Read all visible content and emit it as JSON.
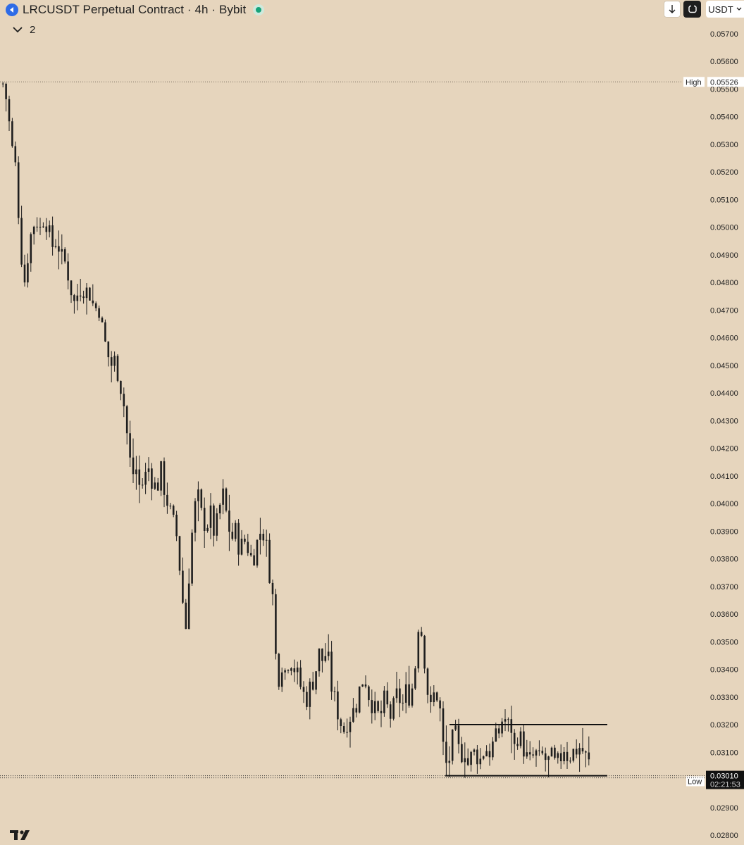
{
  "header": {
    "title": "LRCUSDT Perpetual Contract · 4h · Bybit",
    "indicator_count": "2",
    "currency": "USDT"
  },
  "icons": {
    "symbol": "lrc-logo-icon",
    "status": "market-open-dot",
    "download": "arrow-down-icon",
    "reset": "reset-icon",
    "currency_caret": "chevron-down-icon",
    "indicator_caret": "chevron-down-icon",
    "brand": "tradingview-logo-icon"
  },
  "colors": {
    "background": "#e6d5bd",
    "candles": "#1e1e1e",
    "current_price_bg": "#111111",
    "status_green": "#16a37a"
  },
  "chart_data": {
    "type": "candlestick",
    "symbol": "LRCUSDT",
    "interval": "4h",
    "exchange": "Bybit",
    "y_axis": {
      "ticks": [
        "0.05700",
        "0.05600",
        "0.05500",
        "0.05400",
        "0.05300",
        "0.05200",
        "0.05100",
        "0.05000",
        "0.04900",
        "0.04800",
        "0.04700",
        "0.04600",
        "0.04500",
        "0.04400",
        "0.04300",
        "0.04200",
        "0.04100",
        "0.04000",
        "0.03900",
        "0.03800",
        "0.03700",
        "0.03600",
        "0.03500",
        "0.03400",
        "0.03300",
        "0.03200",
        "0.03100",
        "0.02900",
        "0.02800"
      ],
      "range": [
        0.0278,
        0.0573
      ]
    },
    "high": {
      "label": "High",
      "value": "0.05526"
    },
    "low": {
      "label": "Low",
      "value": "0.02995"
    },
    "current": {
      "price": "0.03010",
      "countdown": "02:21:53"
    },
    "range_box": {
      "top": 0.032,
      "bottom": 0.0301
    },
    "close_path": [
      0.0552,
      0.0545,
      0.053,
      0.0522,
      0.05,
      0.0478,
      0.049,
      0.05,
      0.0503,
      0.0499,
      0.0505,
      0.0498,
      0.0493,
      0.0496,
      0.0489,
      0.0487,
      0.0481,
      0.0472,
      0.0476,
      0.0479,
      0.0477,
      0.0476,
      0.047,
      0.0472,
      0.0462,
      0.0455,
      0.045,
      0.0452,
      0.0445,
      0.0437,
      0.0423,
      0.041,
      0.0413,
      0.0405,
      0.0409,
      0.0413,
      0.0408,
      0.0405,
      0.0412,
      0.0404,
      0.0398,
      0.0393,
      0.0387,
      0.0368,
      0.0355,
      0.038,
      0.0398,
      0.0402,
      0.0394,
      0.0392,
      0.0396,
      0.0388,
      0.0398,
      0.0403,
      0.0394,
      0.0387,
      0.039,
      0.0383,
      0.0387,
      0.0384,
      0.0379,
      0.0385,
      0.039,
      0.0389,
      0.0377,
      0.0365,
      0.0334,
      0.0343,
      0.0339,
      0.0345,
      0.0341,
      0.0337,
      0.0332,
      0.0329,
      0.0334,
      0.0337,
      0.0346,
      0.0343,
      0.0347,
      0.0334,
      0.0328,
      0.0322,
      0.0318,
      0.0322,
      0.0324,
      0.0327,
      0.0334,
      0.0338,
      0.0331,
      0.0327,
      0.0323,
      0.0324,
      0.033,
      0.0322,
      0.0326,
      0.0332,
      0.0326,
      0.0332,
      0.033,
      0.0337,
      0.0357,
      0.0352,
      0.0334,
      0.0325,
      0.0333,
      0.0328,
      0.0311,
      0.0303,
      0.0314,
      0.0316,
      0.0308,
      0.0312,
      0.0305,
      0.031,
      0.0309,
      0.0307,
      0.0312,
      0.031,
      0.0313,
      0.0316,
      0.032,
      0.0335,
      0.0323,
      0.0311,
      0.0317,
      0.0313,
      0.0308,
      0.0306,
      0.031,
      0.0307,
      0.0309,
      0.0306,
      0.0308,
      0.0305,
      0.0307,
      0.0312,
      0.0308,
      0.031,
      0.0311,
      0.0312,
      0.0309,
      0.0306
    ]
  }
}
